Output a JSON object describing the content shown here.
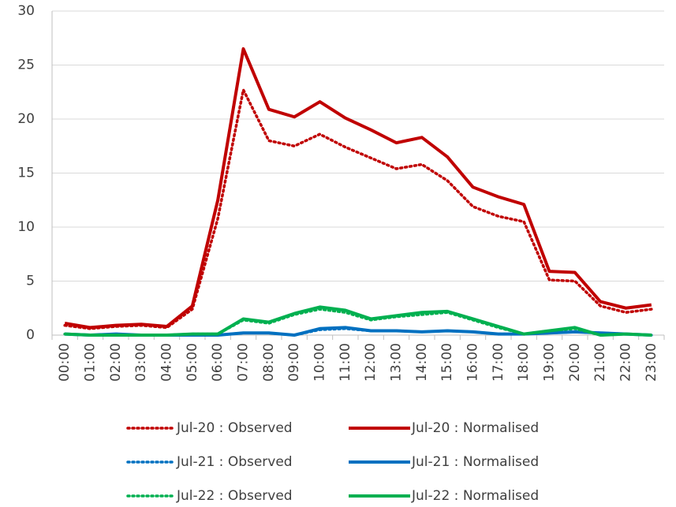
{
  "chart_data": {
    "type": "line",
    "categories": [
      "00:00",
      "01:00",
      "02:00",
      "03:00",
      "04:00",
      "05:00",
      "06:00",
      "07:00",
      "08:00",
      "09:00",
      "10:00",
      "11:00",
      "12:00",
      "13:00",
      "14:00",
      "15:00",
      "16:00",
      "17:00",
      "18:00",
      "19:00",
      "20:00",
      "21:00",
      "22:00",
      "23:00"
    ],
    "series": [
      {
        "name": "Jul-20 : Observed",
        "color": "#c00000",
        "line_style": "dotted",
        "values": [
          0.9,
          0.6,
          0.8,
          0.9,
          0.7,
          2.4,
          10.8,
          22.7,
          18.0,
          17.5,
          18.6,
          17.4,
          16.4,
          15.4,
          15.8,
          14.3,
          11.9,
          11.0,
          10.5,
          5.1,
          5.0,
          2.7,
          2.1,
          2.4
        ]
      },
      {
        "name": "Jul-20 : Normalised",
        "color": "#c00000",
        "line_style": "solid",
        "values": [
          1.1,
          0.7,
          0.9,
          1.0,
          0.8,
          2.7,
          12.5,
          26.5,
          20.9,
          20.2,
          21.6,
          20.1,
          19.0,
          17.8,
          18.3,
          16.5,
          13.7,
          12.8,
          12.1,
          5.9,
          5.8,
          3.1,
          2.5,
          2.8
        ]
      },
      {
        "name": "Jul-21 : Observed",
        "color": "#0070c0",
        "line_style": "dotted",
        "values": [
          0.1,
          0.0,
          0.1,
          0.0,
          0.0,
          0.0,
          0.0,
          0.2,
          0.2,
          0.0,
          0.5,
          0.6,
          0.4,
          0.4,
          0.3,
          0.4,
          0.3,
          0.1,
          0.1,
          0.2,
          0.3,
          0.2,
          0.1,
          0.0
        ]
      },
      {
        "name": "Jul-21 : Normalised",
        "color": "#0070c0",
        "line_style": "solid",
        "values": [
          0.1,
          0.0,
          0.1,
          0.0,
          0.0,
          0.0,
          0.0,
          0.2,
          0.2,
          0.0,
          0.6,
          0.7,
          0.4,
          0.4,
          0.3,
          0.4,
          0.3,
          0.1,
          0.1,
          0.2,
          0.3,
          0.2,
          0.1,
          0.0
        ]
      },
      {
        "name": "Jul-22 : Observed",
        "color": "#00b050",
        "line_style": "dotted",
        "values": [
          0.1,
          0.0,
          0.0,
          0.0,
          0.0,
          0.1,
          0.1,
          1.4,
          1.1,
          1.9,
          2.4,
          2.1,
          1.4,
          1.7,
          1.9,
          2.1,
          1.4,
          0.7,
          0.1,
          0.4,
          0.6,
          0.0,
          0.1,
          0.0
        ]
      },
      {
        "name": "Jul-22 : Normalised",
        "color": "#00b050",
        "line_style": "solid",
        "values": [
          0.1,
          0.0,
          0.0,
          0.0,
          0.0,
          0.1,
          0.1,
          1.5,
          1.2,
          2.0,
          2.6,
          2.3,
          1.5,
          1.8,
          2.1,
          2.2,
          1.5,
          0.8,
          0.1,
          0.4,
          0.7,
          0.0,
          0.1,
          0.0
        ]
      }
    ],
    "ylim": [
      0,
      30
    ],
    "yticks": [
      0,
      5,
      10,
      15,
      20,
      25,
      30
    ],
    "grid": true,
    "legend": "bottom"
  }
}
